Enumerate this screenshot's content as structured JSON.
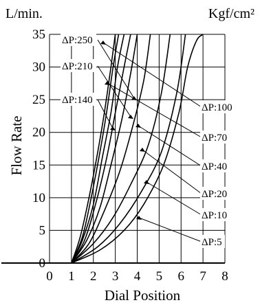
{
  "chart_data": {
    "type": "line",
    "title": "",
    "xlabel": "Dial Position",
    "ylabel": "Flow Rate",
    "y_unit": "L/min.",
    "pressure_unit": "Kgf/cm²",
    "xlim": [
      0,
      8
    ],
    "ylim": [
      0,
      35
    ],
    "x_ticks": [
      0,
      1,
      2,
      3,
      4,
      5,
      6,
      7,
      8
    ],
    "y_ticks": [
      0,
      5,
      10,
      15,
      20,
      25,
      30,
      35
    ],
    "grid": true,
    "legend": "inline-labels",
    "series": [
      {
        "name": "ΔP:250",
        "x": [
          1.0,
          1.4,
          1.8,
          2.2,
          2.5,
          2.8,
          3.0
        ],
        "y": [
          0,
          4,
          10,
          17,
          23,
          30,
          35
        ]
      },
      {
        "name": "ΔP:210",
        "x": [
          1.0,
          1.5,
          1.9,
          2.3,
          2.6,
          2.9,
          3.15
        ],
        "y": [
          0,
          4,
          10,
          17,
          23,
          30,
          35
        ]
      },
      {
        "name": "ΔP:140",
        "x": [
          1.0,
          1.5,
          2.0,
          2.4,
          2.8,
          3.1,
          3.4
        ],
        "y": [
          0,
          3.5,
          9,
          16,
          23,
          30,
          35
        ]
      },
      {
        "name": "ΔP:100",
        "x": [
          1.0,
          1.6,
          2.1,
          2.6,
          3.0,
          3.4,
          3.7
        ],
        "y": [
          0,
          3.5,
          9,
          16,
          23,
          30,
          35
        ]
      },
      {
        "name": "ΔP:70",
        "x": [
          1.0,
          1.7,
          2.3,
          2.8,
          3.3,
          3.7,
          4.0
        ],
        "y": [
          0,
          3.5,
          8.5,
          15,
          22,
          29,
          35
        ]
      },
      {
        "name": "ΔP:40",
        "x": [
          1.0,
          1.8,
          2.5,
          3.2,
          3.8,
          4.3,
          4.6
        ],
        "y": [
          0,
          3,
          8,
          14,
          21,
          28,
          35
        ]
      },
      {
        "name": "ΔP:20",
        "x": [
          1.0,
          2.0,
          2.9,
          3.7,
          4.5,
          5.1,
          5.5
        ],
        "y": [
          0,
          3,
          7,
          12,
          18,
          26,
          35
        ]
      },
      {
        "name": "ΔP:10",
        "x": [
          1.0,
          2.2,
          3.2,
          4.2,
          5.1,
          5.8,
          6.2
        ],
        "y": [
          0,
          2.5,
          6,
          11,
          17,
          26,
          35
        ]
      },
      {
        "name": "ΔP:5",
        "x": [
          1.0,
          2.3,
          3.4,
          4.3,
          5.2,
          5.9,
          6.3,
          6.7,
          7.0
        ],
        "y": [
          0,
          2,
          5,
          9,
          15,
          23,
          30,
          34,
          35
        ]
      }
    ]
  }
}
